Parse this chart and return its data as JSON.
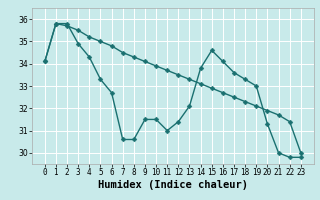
{
  "xlabel": "Humidex (Indice chaleur)",
  "bg_color": "#c8eaea",
  "grid_color": "#ffffff",
  "line_color": "#1a7070",
  "markersize": 2.5,
  "linewidth": 1.0,
  "series1_x": [
    0,
    1,
    2,
    3,
    4,
    5,
    6,
    7,
    8,
    9,
    10,
    11,
    12,
    13,
    14,
    15,
    16,
    17,
    18,
    19,
    20,
    21,
    22,
    23
  ],
  "series1_y": [
    34.1,
    35.8,
    35.8,
    34.9,
    34.3,
    33.3,
    32.7,
    30.6,
    30.6,
    31.5,
    31.5,
    31.0,
    31.4,
    32.1,
    33.8,
    34.6,
    34.1,
    33.6,
    33.3,
    33.0,
    31.3,
    30.0,
    29.8,
    29.8
  ],
  "series2_x": [
    0,
    1,
    2,
    3,
    4,
    5,
    6,
    7,
    8,
    9,
    10,
    11,
    12,
    13,
    14,
    15,
    16,
    17,
    18,
    19,
    20,
    21,
    22,
    23
  ],
  "series2_y": [
    34.1,
    35.8,
    35.7,
    35.5,
    35.2,
    35.0,
    34.8,
    34.5,
    34.3,
    34.1,
    33.9,
    33.7,
    33.5,
    33.3,
    33.1,
    32.9,
    32.7,
    32.5,
    32.3,
    32.1,
    31.9,
    31.7,
    31.4,
    30.0
  ],
  "ylim": [
    29.5,
    36.5
  ],
  "yticks": [
    30,
    31,
    32,
    33,
    34,
    35,
    36
  ],
  "xticks": [
    0,
    1,
    2,
    3,
    4,
    5,
    6,
    7,
    8,
    9,
    10,
    11,
    12,
    13,
    14,
    15,
    16,
    17,
    18,
    19,
    20,
    21,
    22,
    23
  ],
  "xtick_labels": [
    "0",
    "1",
    "2",
    "3",
    "4",
    "5",
    "6",
    "7",
    "8",
    "9",
    "10",
    "11",
    "12",
    "13",
    "14",
    "15",
    "16",
    "17",
    "18",
    "19",
    "20",
    "21",
    "22",
    "23"
  ],
  "tick_fontsize": 5.5,
  "xlabel_fontsize": 7.5
}
